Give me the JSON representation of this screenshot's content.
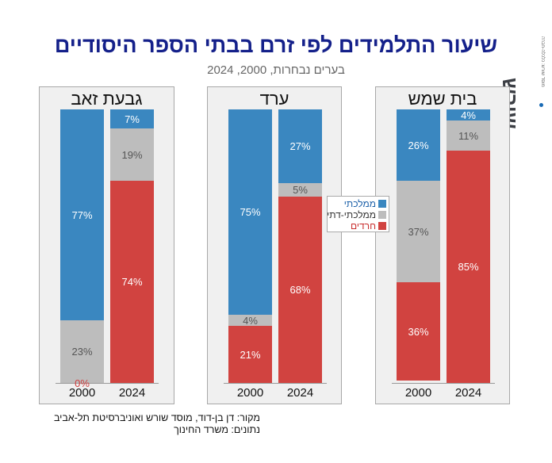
{
  "header": {
    "title": "שיעור התלמידים לפי זרם בבתי הספר היסודיים",
    "subtitle": "בערים נבחרות, 2000, 2024"
  },
  "logo": {
    "name": "שורש",
    "tagline": "מוסד שורש: כלכלה-חברה"
  },
  "colors": {
    "mamlachti": "#3a87c0",
    "mamlachti_dati": "#bdbdbd",
    "haredi": "#d14340"
  },
  "legend": [
    {
      "label": "ממלכתי",
      "color": "#3a87c0",
      "text_color": "#1a5fa8"
    },
    {
      "label": "ממלכתי-דתי",
      "color": "#bdbdbd",
      "text_color": "#333333"
    },
    {
      "label": "חרדים",
      "color": "#d14340",
      "text_color": "#c92f2f"
    }
  ],
  "chart_data": {
    "type": "bar",
    "stacked": true,
    "title": "שיעור התלמידים לפי זרם בבתי הספר היסודיים",
    "subtitle": "בערים נבחרות, 2000, 2024",
    "categories": [
      "2000",
      "2024"
    ],
    "series_names": [
      "ממלכתי",
      "ממלכתי-דתי",
      "חרדים"
    ],
    "ylim": [
      0,
      100
    ],
    "legend_position": "center",
    "panels": [
      {
        "city": "גבעת זאב",
        "bars": [
          {
            "year": "2000",
            "values": [
              77,
              23,
              0
            ],
            "labels": [
              "77%",
              "23%",
              "0%"
            ]
          },
          {
            "year": "2024",
            "values": [
              7,
              19,
              74
            ],
            "labels": [
              "7%",
              "19%",
              "74%"
            ]
          }
        ]
      },
      {
        "city": "ערד",
        "bars": [
          {
            "year": "2000",
            "values": [
              75,
              4,
              21
            ],
            "labels": [
              "75%",
              "4%",
              "21%"
            ]
          },
          {
            "year": "2024",
            "values": [
              27,
              5,
              68
            ],
            "labels": [
              "27%",
              "5%",
              "68%"
            ]
          }
        ]
      },
      {
        "city": "בית שמש",
        "bars": [
          {
            "year": "2000",
            "values": [
              26,
              37,
              36
            ],
            "labels": [
              "26%",
              "37%",
              "36%"
            ]
          },
          {
            "year": "2024",
            "values": [
              4,
              11,
              85
            ],
            "labels": [
              "4%",
              "11%",
              "85%"
            ]
          }
        ]
      }
    ]
  },
  "footer": {
    "source_line": "מקור:  דן בן-דוד, מוסד שורש ואוניברסיטת תל-אביב",
    "data_line": "נתונים: משרד החינוך"
  }
}
